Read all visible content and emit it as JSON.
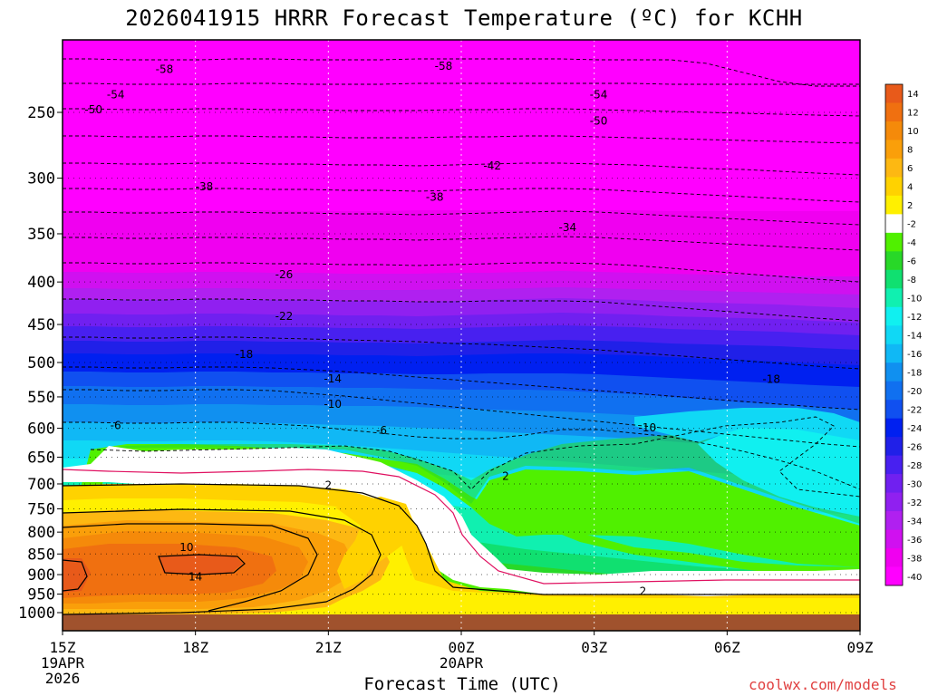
{
  "chart_data": {
    "type": "heatmap",
    "title": "2026041915 HRRR Forecast Temperature (ºC) for KCHH",
    "xlabel": "Forecast Time (UTC)",
    "ylabel": "",
    "credit": "coolwx.com/models",
    "x_ticks": [
      {
        "label": "15Z",
        "sub1": "19APR",
        "sub2": "2026",
        "hour": 0
      },
      {
        "label": "18Z",
        "sub1": "",
        "sub2": "",
        "hour": 3
      },
      {
        "label": "21Z",
        "sub1": "",
        "sub2": "",
        "hour": 6
      },
      {
        "label": "00Z",
        "sub1": "20APR",
        "sub2": "",
        "hour": 9
      },
      {
        "label": "03Z",
        "sub1": "",
        "sub2": "",
        "hour": 12
      },
      {
        "label": "06Z",
        "sub1": "",
        "sub2": "",
        "hour": 15
      },
      {
        "label": "09Z",
        "sub1": "",
        "sub2": "",
        "hour": 18
      }
    ],
    "x_range_hours": [
      0,
      18
    ],
    "y_ticks": [
      250,
      300,
      350,
      400,
      450,
      500,
      550,
      600,
      650,
      700,
      750,
      800,
      850,
      900,
      950,
      1000
    ],
    "y_range_hpa": [
      1000,
      200
    ],
    "y_scale": "log",
    "colorbar_levels": [
      14,
      12,
      10,
      8,
      6,
      4,
      2,
      -2,
      -4,
      -6,
      -8,
      -10,
      -12,
      -14,
      -16,
      -18,
      -20,
      -22,
      -24,
      -26,
      -28,
      -30,
      -32,
      -34,
      -36,
      -38,
      -40
    ],
    "colorbar_colors": [
      "#e85a1a",
      "#f07010",
      "#f58a0a",
      "#fa9f0a",
      "#fdb812",
      "#ffd200",
      "#fff000",
      "#ffffff",
      "#50f000",
      "#28d828",
      "#10e070",
      "#10f0b0",
      "#10f0f0",
      "#10d8f5",
      "#10b8f5",
      "#1090f0",
      "#1070f0",
      "#1050f0",
      "#0020f0",
      "#2020e8",
      "#4820f0",
      "#7020f0",
      "#9020f0",
      "#b020f0",
      "#d010f0",
      "#f000f0",
      "#ff00ff"
    ],
    "contour_labels": [
      {
        "label": "-58",
        "hour": 2.3,
        "p": 222
      },
      {
        "label": "-58",
        "hour": 8.6,
        "p": 220
      },
      {
        "label": "-54",
        "hour": 1.2,
        "p": 238
      },
      {
        "label": "-54",
        "hour": 12.1,
        "p": 238
      },
      {
        "label": "-50",
        "hour": 0.7,
        "p": 248
      },
      {
        "label": "-50",
        "hour": 12.1,
        "p": 256
      },
      {
        "label": "-42",
        "hour": 9.7,
        "p": 290
      },
      {
        "label": "-38",
        "hour": 3.2,
        "p": 307
      },
      {
        "label": "-38",
        "hour": 8.4,
        "p": 316
      },
      {
        "label": "-34",
        "hour": 11.4,
        "p": 344
      },
      {
        "label": "-26",
        "hour": 5.0,
        "p": 392
      },
      {
        "label": "-22",
        "hour": 5.0,
        "p": 440
      },
      {
        "label": "-18",
        "hour": 4.1,
        "p": 489
      },
      {
        "label": "-18",
        "hour": 16.0,
        "p": 524
      },
      {
        "label": "-14",
        "hour": 6.1,
        "p": 523
      },
      {
        "label": "-10",
        "hour": 6.1,
        "p": 561
      },
      {
        "label": "-10",
        "hour": 13.2,
        "p": 599
      },
      {
        "label": "-6",
        "hour": 1.2,
        "p": 595
      },
      {
        "label": "-6",
        "hour": 7.2,
        "p": 604
      },
      {
        "label": "2",
        "hour": 6.0,
        "p": 703
      },
      {
        "label": "2",
        "hour": 10.0,
        "p": 685
      },
      {
        "label": "10",
        "hour": 2.8,
        "p": 835
      },
      {
        "label": "14",
        "hour": 3.0,
        "p": 905
      },
      {
        "label": "2",
        "hour": 13.1,
        "p": 943
      }
    ],
    "grid": true,
    "legend": "right colorbar"
  }
}
